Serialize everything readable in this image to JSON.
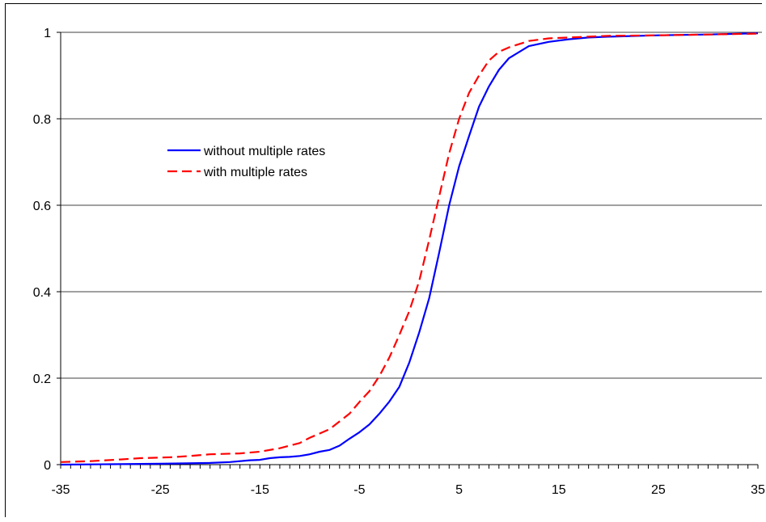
{
  "chart_data": {
    "type": "line",
    "title": "",
    "xlabel": "",
    "ylabel": "",
    "xlim": [
      -35,
      35
    ],
    "ylim": [
      0,
      1
    ],
    "x_ticks": [
      -35,
      -25,
      -15,
      -5,
      5,
      15,
      25,
      35
    ],
    "x_tick_labels": [
      "-35",
      "-25",
      "-15",
      "-5",
      "5",
      "15",
      "25",
      "35"
    ],
    "y_ticks": [
      0,
      0.2,
      0.4,
      0.6,
      0.8,
      1
    ],
    "y_tick_labels": [
      "0",
      "0.2",
      "0.4",
      "0.6",
      "0.8",
      "1"
    ],
    "grid": "horizontal",
    "legend_position": "upper-left inside plot",
    "series": [
      {
        "name": "without multiple rates",
        "color": "#0000ff",
        "style": "solid",
        "points": [
          [
            -35,
            0.0
          ],
          [
            -30,
            0.001
          ],
          [
            -25,
            0.002
          ],
          [
            -20,
            0.004
          ],
          [
            -18,
            0.006
          ],
          [
            -16,
            0.01
          ],
          [
            -15,
            0.011
          ],
          [
            -14,
            0.015
          ],
          [
            -13,
            0.017
          ],
          [
            -12,
            0.018
          ],
          [
            -11,
            0.02
          ],
          [
            -10,
            0.024
          ],
          [
            -9,
            0.03
          ],
          [
            -8,
            0.034
          ],
          [
            -7,
            0.044
          ],
          [
            -6,
            0.06
          ],
          [
            -5,
            0.075
          ],
          [
            -4,
            0.093
          ],
          [
            -3,
            0.118
          ],
          [
            -2,
            0.146
          ],
          [
            -1,
            0.18
          ],
          [
            0,
            0.236
          ],
          [
            1,
            0.306
          ],
          [
            2,
            0.385
          ],
          [
            3,
            0.49
          ],
          [
            4,
            0.6
          ],
          [
            5,
            0.69
          ],
          [
            6,
            0.76
          ],
          [
            7,
            0.828
          ],
          [
            8,
            0.875
          ],
          [
            9,
            0.913
          ],
          [
            10,
            0.94
          ],
          [
            12,
            0.968
          ],
          [
            14,
            0.978
          ],
          [
            16,
            0.984
          ],
          [
            18,
            0.988
          ],
          [
            20,
            0.99
          ],
          [
            25,
            0.993
          ],
          [
            30,
            0.995
          ],
          [
            35,
            0.998
          ]
        ]
      },
      {
        "name": "with multiple rates",
        "color": "#ff0000",
        "style": "dashed",
        "points": [
          [
            -35,
            0.006
          ],
          [
            -32,
            0.008
          ],
          [
            -29,
            0.012
          ],
          [
            -27,
            0.015
          ],
          [
            -24,
            0.017
          ],
          [
            -22,
            0.02
          ],
          [
            -20,
            0.024
          ],
          [
            -17,
            0.026
          ],
          [
            -15,
            0.03
          ],
          [
            -13,
            0.038
          ],
          [
            -11,
            0.05
          ],
          [
            -10,
            0.062
          ],
          [
            -9,
            0.072
          ],
          [
            -8,
            0.082
          ],
          [
            -7,
            0.1
          ],
          [
            -6,
            0.118
          ],
          [
            -5,
            0.145
          ],
          [
            -4,
            0.17
          ],
          [
            -3,
            0.205
          ],
          [
            -2,
            0.248
          ],
          [
            -1,
            0.3
          ],
          [
            0,
            0.355
          ],
          [
            1,
            0.425
          ],
          [
            2,
            0.52
          ],
          [
            3,
            0.62
          ],
          [
            4,
            0.72
          ],
          [
            5,
            0.8
          ],
          [
            6,
            0.86
          ],
          [
            7,
            0.9
          ],
          [
            8,
            0.935
          ],
          [
            9,
            0.955
          ],
          [
            10,
            0.965
          ],
          [
            12,
            0.98
          ],
          [
            14,
            0.986
          ],
          [
            16,
            0.988
          ],
          [
            18,
            0.99
          ],
          [
            20,
            0.992
          ],
          [
            25,
            0.993
          ],
          [
            30,
            0.995
          ],
          [
            35,
            0.997
          ]
        ]
      }
    ]
  }
}
